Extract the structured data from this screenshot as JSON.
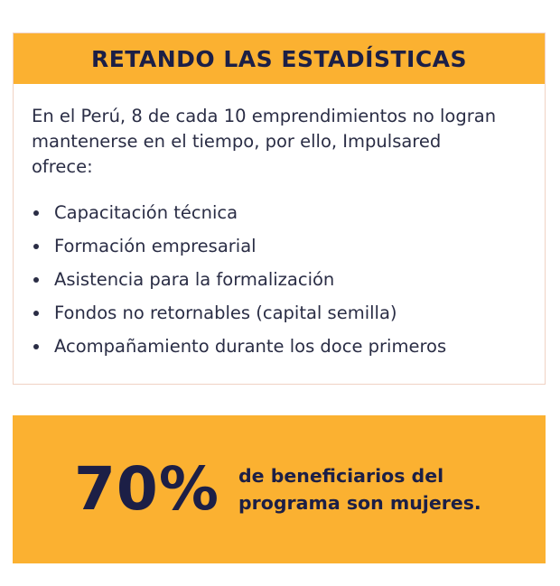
{
  "card": {
    "title": "RETANDO LAS ESTADÍSTICAS",
    "intro": "En el Perú, 8 de cada 10 emprendimientos no logran mantenerse en el tiempo, por ello, Impulsared ofrece:",
    "items": [
      "Capacitación técnica",
      "Formación empresarial",
      "Asistencia para la formalización",
      "Fondos no retornables (capital semilla)",
      "Acompañamiento durante los doce primeros"
    ]
  },
  "stat": {
    "value": "70%",
    "caption": "de beneficiarios del programa son mujeres."
  },
  "colors": {
    "accent": "#fbb131",
    "navy": "#1c1f46",
    "text": "#2a2d45",
    "border": "#f0d2c4"
  }
}
